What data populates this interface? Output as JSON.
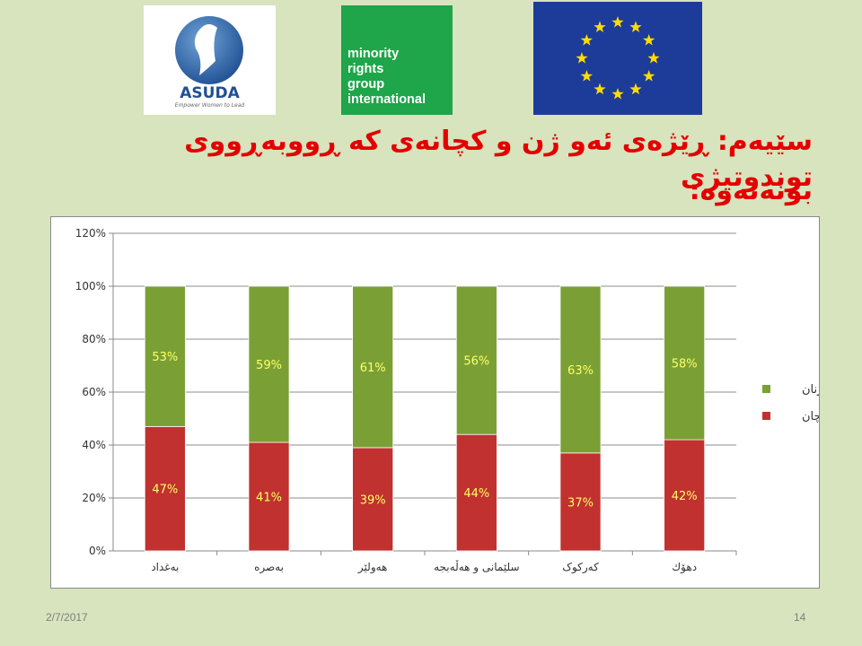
{
  "logos": {
    "asuda": {
      "name": "ASUDA",
      "tagline": "Empower Women to Lead"
    },
    "mrg": {
      "lines": [
        "minority",
        "rights",
        "group",
        "international"
      ]
    },
    "eu": {
      "stars": 12
    }
  },
  "slide": {
    "title_line1": "سێیەم: ڕێژەی ئەو ژن و کچانەی کە ڕووبەڕووی توندوتیژی",
    "title_line2": "بونەتەوە:",
    "date": "2/7/2017",
    "page_number": "14"
  },
  "colors": {
    "girls": "#c0312f",
    "women": "#7aa035",
    "label_girls": "#ffff66",
    "label_women": "#ffff66"
  },
  "chart_data": {
    "type": "bar",
    "stacked": true,
    "categories": [
      "بەغداد",
      "بەصرە",
      "هەولێر",
      "سلێمانی و هەڵەبجە",
      "کەرکوک",
      "دهۆك"
    ],
    "series": [
      {
        "name": "کچان",
        "values": [
          47,
          41,
          39,
          44,
          37,
          42
        ],
        "labels": [
          "47%",
          "41%",
          "39%",
          "44%",
          "37%",
          "42%"
        ]
      },
      {
        "name": "ژنان",
        "values": [
          53,
          59,
          61,
          56,
          63,
          58
        ],
        "labels": [
          "53%",
          "59%",
          "61%",
          "56%",
          "63%",
          "58%"
        ]
      }
    ],
    "y_ticks": [
      "0%",
      "20%",
      "40%",
      "60%",
      "80%",
      "100%",
      "120%"
    ],
    "ylim": [
      0,
      120
    ],
    "grid": true,
    "legend_position": "right"
  }
}
